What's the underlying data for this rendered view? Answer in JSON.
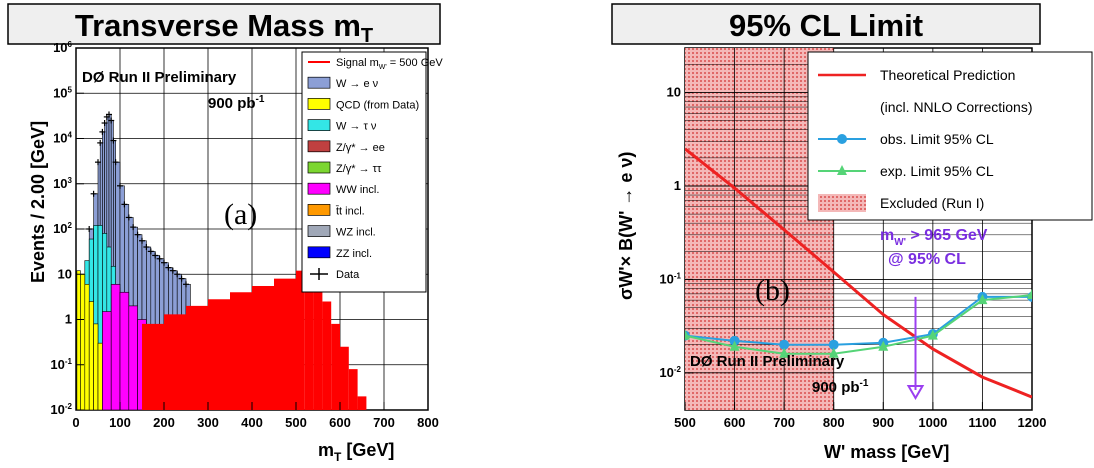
{
  "left": {
    "title": "Transverse Mass m",
    "title_sub": "T",
    "preliminary": "DØ Run II Preliminary",
    "lumi": "900 pb",
    "lumi_sup": "-1",
    "panel_tag": "(a)",
    "xlabel": "m",
    "xlabel_sub": "T",
    "xlabel_unit": " [GeV]",
    "ylabel": "Events / 2.00   [GeV]",
    "xticks": [
      "0",
      "100",
      "200",
      "300",
      "400",
      "500",
      "600",
      "700",
      "800"
    ],
    "yticks": [
      {
        "base": "10",
        "exp": "-2"
      },
      {
        "base": "10",
        "exp": "-1"
      },
      {
        "base": "1",
        "exp": ""
      },
      {
        "base": "10",
        "exp": ""
      },
      {
        "base": "10",
        "exp": "2"
      },
      {
        "base": "10",
        "exp": "3"
      },
      {
        "base": "10",
        "exp": "4"
      },
      {
        "base": "10",
        "exp": "5"
      },
      {
        "base": "10",
        "exp": "6"
      }
    ],
    "legend": [
      {
        "label": "Signal m",
        "sub": "W'",
        "tail": " = 500 GeV",
        "kind": "line",
        "color": "#ff0000"
      },
      {
        "label": "W → e ν",
        "kind": "box",
        "color": "#8c9fd6"
      },
      {
        "label": "QCD (from Data)",
        "kind": "box",
        "color": "#ffff00"
      },
      {
        "label": "W → τ ν",
        "kind": "box",
        "color": "#33e6e6"
      },
      {
        "label": "Z/γ* → ee",
        "kind": "box",
        "color": "#c04040"
      },
      {
        "label": "Z/γ* → ττ",
        "kind": "box",
        "color": "#7cd630"
      },
      {
        "label": "WW incl.",
        "kind": "box",
        "color": "#ff00ff"
      },
      {
        "label": "t̄t incl.",
        "kind": "box",
        "color": "#ff9900"
      },
      {
        "label": "WZ incl.",
        "kind": "box",
        "color": "#a0a8b8"
      },
      {
        "label": "ZZ incl.",
        "kind": "box",
        "color": "#0000ff"
      },
      {
        "label": "Data",
        "kind": "marker",
        "color": "#000000"
      }
    ]
  },
  "right": {
    "title": "95% CL Limit",
    "preliminary": "DØ Run II Preliminary",
    "lumi": "900 pb",
    "lumi_sup": "-1",
    "panel_tag": "(b)",
    "xlabel": "W' mass [GeV]",
    "ylabel": "σW'× B(W' → e ν)",
    "mass_limit_line1": "m",
    "mass_limit_sub": "W'",
    "mass_limit_tail": " > 965 GeV",
    "mass_limit_line2": "@ 95% CL",
    "xticks": [
      "500",
      "600",
      "700",
      "800",
      "900",
      "1000",
      "1100",
      "1200"
    ],
    "yticks": [
      {
        "base": "10",
        "exp": "-2"
      },
      {
        "base": "10",
        "exp": "-1"
      },
      {
        "base": "1",
        "exp": ""
      },
      {
        "base": "10",
        "exp": ""
      }
    ],
    "legend": [
      {
        "label": "Theoretical Prediction",
        "kind": "line",
        "color": "#ee2222"
      },
      {
        "label": "(incl. NNLO Corrections)",
        "kind": "none",
        "color": ""
      },
      {
        "label": "obs. Limit 95% CL",
        "kind": "star",
        "color": "#2aa0e0"
      },
      {
        "label": "exp. Limit 95% CL",
        "kind": "triangle",
        "color": "#55d477"
      },
      {
        "label": "Excluded (Run I)",
        "kind": "hatch",
        "color": "#e06060"
      }
    ]
  },
  "chart_data": [
    {
      "type": "bar",
      "title": "Transverse Mass mT",
      "xlabel": "mT [GeV]",
      "ylabel": "Events / 2.00 [GeV]",
      "xlim": [
        0,
        800
      ],
      "ylim": [
        0.01,
        1000000
      ],
      "yscale": "log",
      "grid": true,
      "legend_position": "top-right",
      "series": [
        {
          "name": "W → e ν",
          "x": [
            30,
            40,
            50,
            55,
            60,
            65,
            70,
            75,
            80,
            85,
            90,
            100,
            110,
            120,
            130,
            140,
            150,
            160,
            170,
            180,
            190,
            200,
            210,
            220,
            230,
            240,
            250
          ],
          "values": [
            100,
            600,
            3000,
            8000,
            14000,
            22000,
            30000,
            34000,
            25000,
            9000,
            3000,
            900,
            350,
            180,
            110,
            75,
            55,
            40,
            32,
            26,
            22,
            18,
            14,
            12,
            10,
            8,
            6
          ]
        },
        {
          "name": "QCD (from Data)",
          "x": [
            2,
            10,
            20,
            30,
            40,
            50,
            60,
            70
          ],
          "values": [
            12,
            10,
            6,
            2.5,
            0.8,
            0.3,
            0.12,
            0.05
          ]
        },
        {
          "name": "W → τ ν",
          "x": [
            20,
            30,
            40,
            50,
            60,
            70,
            80,
            90,
            100
          ],
          "values": [
            20,
            60,
            120,
            120,
            80,
            40,
            15,
            5,
            2
          ]
        },
        {
          "name": "WW incl.",
          "x": [
            60,
            80,
            100,
            120,
            140,
            160,
            180
          ],
          "values": [
            1.5,
            6,
            4,
            2,
            1,
            0.5,
            0.2
          ]
        },
        {
          "name": "Signal mW' = 500 GeV",
          "x": [
            150,
            200,
            250,
            300,
            350,
            400,
            450,
            500,
            520,
            540,
            560,
            580,
            600,
            620,
            640
          ],
          "values": [
            0.8,
            1.3,
            2.0,
            2.8,
            4.0,
            5.5,
            8,
            12,
            10,
            6,
            2.5,
            0.8,
            0.25,
            0.08,
            0.02
          ]
        }
      ]
    },
    {
      "type": "line",
      "title": "95% CL Limit",
      "xlabel": "W' mass [GeV]",
      "ylabel": "σW' × B(W' → e ν)",
      "xlim": [
        500,
        1200
      ],
      "ylim": [
        0.004,
        30
      ],
      "yscale": "log",
      "grid": true,
      "legend_position": "top-right",
      "excluded_region_run1": [
        500,
        800
      ],
      "mass_limit": 965,
      "series": [
        {
          "name": "Theoretical Prediction",
          "x": [
            500,
            600,
            700,
            800,
            900,
            1000,
            1100,
            1200
          ],
          "values": [
            2.5,
            0.95,
            0.34,
            0.12,
            0.042,
            0.018,
            0.009,
            0.0055
          ]
        },
        {
          "name": "obs. Limit 95% CL",
          "x": [
            500,
            600,
            700,
            800,
            900,
            1000,
            1100,
            1200
          ],
          "values": [
            0.025,
            0.022,
            0.02,
            0.02,
            0.021,
            0.026,
            0.065,
            0.065
          ]
        },
        {
          "name": "exp. Limit 95% CL",
          "x": [
            500,
            600,
            700,
            800,
            900,
            1000,
            1100,
            1200
          ],
          "values": [
            0.025,
            0.019,
            0.016,
            0.016,
            0.019,
            0.025,
            0.06,
            0.068
          ]
        }
      ]
    }
  ]
}
